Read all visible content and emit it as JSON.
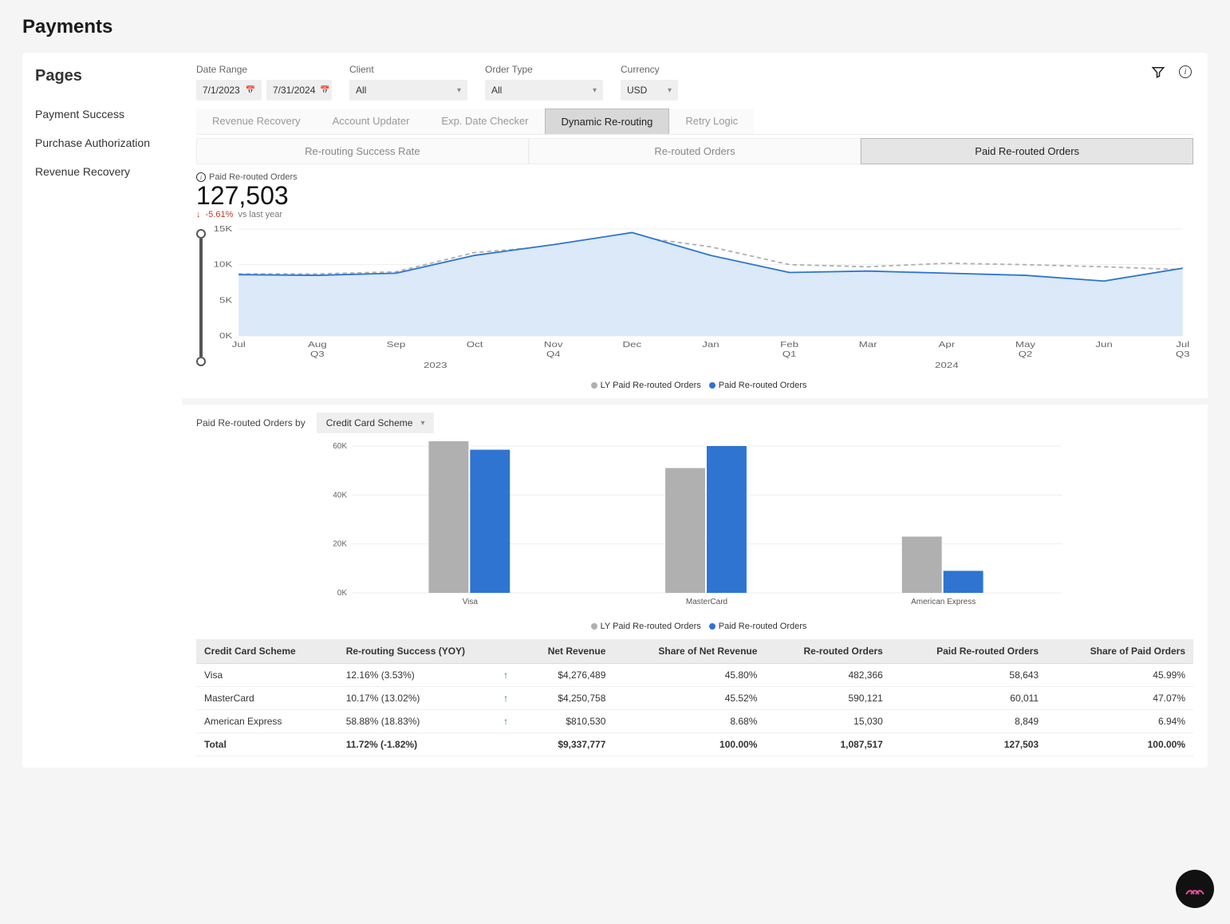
{
  "page_title": "Payments",
  "sidebar": {
    "title": "Pages",
    "items": [
      {
        "label": "Payment Success"
      },
      {
        "label": "Purchase Authorization"
      },
      {
        "label": "Revenue Recovery"
      }
    ]
  },
  "filters": {
    "date_range": {
      "label": "Date Range",
      "from": "7/1/2023",
      "to": "7/31/2024"
    },
    "client": {
      "label": "Client",
      "value": "All"
    },
    "order_type": {
      "label": "Order Type",
      "value": "All"
    },
    "currency": {
      "label": "Currency",
      "value": "USD"
    }
  },
  "tabs1": {
    "items": [
      "Revenue Recovery",
      "Account Updater",
      "Exp. Date Checker",
      "Dynamic Re-routing",
      "Retry Logic"
    ],
    "active_index": 3
  },
  "tabs2": {
    "items": [
      "Re-routing Success Rate",
      "Re-routed Orders",
      "Paid Re-routed Orders"
    ],
    "active_index": 2
  },
  "metric": {
    "label": "Paid Re-routed Orders",
    "value": "127,503",
    "change_pct": "-5.61%",
    "change_direction": "down",
    "vs_label": "vs last year"
  },
  "line_chart": {
    "type": "area-line",
    "y_axis": {
      "min": 0,
      "max": 15000,
      "ticks": [
        0,
        5000,
        10000,
        15000
      ],
      "tick_labels": [
        "0K",
        "5K",
        "10K",
        "15K"
      ]
    },
    "x_labels": [
      "Jul",
      "Aug",
      "Sep",
      "Oct",
      "Nov",
      "Dec",
      "Jan",
      "Feb",
      "Mar",
      "Apr",
      "May",
      "Jun",
      "Jul"
    ],
    "x_sub": [
      {
        "label": "Q3",
        "span": [
          0,
          2
        ]
      },
      {
        "label": "Q4",
        "span": [
          3,
          5
        ]
      },
      {
        "label": "Q1",
        "span": [
          6,
          8
        ]
      },
      {
        "label": "Q2",
        "span": [
          9,
          11
        ]
      },
      {
        "label": "Q3",
        "span": [
          12,
          12
        ]
      }
    ],
    "x_years": [
      {
        "label": "2023",
        "span": [
          0,
          5
        ]
      },
      {
        "label": "2024",
        "span": [
          6,
          12
        ]
      }
    ],
    "series": [
      {
        "name": "LY Paid Re-routed Orders",
        "color": "#b0b0b0",
        "dash": "4,3",
        "fill": "none",
        "values": [
          8700,
          8700,
          9000,
          11700,
          12600,
          14000,
          12500,
          10000,
          9700,
          10200,
          10000,
          9700,
          9300
        ]
      },
      {
        "name": "Paid Re-routed Orders",
        "color": "#2e74d0",
        "dash": "none",
        "fill": "#dbe9f8",
        "values": [
          8600,
          8500,
          8800,
          11300,
          12800,
          14500,
          11300,
          8900,
          9100,
          8800,
          8500,
          7700,
          9500
        ]
      }
    ],
    "legend_dot_colors": [
      "#b0b0b0",
      "#2e74d0"
    ],
    "grid_color": "#eeeeee",
    "axis_color": "#cccccc",
    "label_fontsize": 10,
    "background": "#ffffff"
  },
  "breakdown": {
    "label": "Paid Re-routed Orders by",
    "selector_value": "Credit Card Scheme"
  },
  "bar_chart": {
    "type": "grouped-bar",
    "y_axis": {
      "min": 0,
      "max": 60000,
      "ticks": [
        0,
        20000,
        40000,
        60000
      ],
      "tick_labels": [
        "0K",
        "20K",
        "40K",
        "60K"
      ]
    },
    "categories": [
      "Visa",
      "MasterCard",
      "American Express"
    ],
    "series": [
      {
        "name": "LY Paid Re-routed Orders",
        "color": "#b0b0b0",
        "values": [
          62000,
          51000,
          23000
        ]
      },
      {
        "name": "Paid Re-routed Orders",
        "color": "#2e74d0",
        "values": [
          58500,
          60000,
          9000
        ]
      }
    ],
    "legend_dot_colors": [
      "#b0b0b0",
      "#2e74d0"
    ],
    "bar_width": 0.35,
    "grid_color": "#eeeeee",
    "label_fontsize": 10
  },
  "table": {
    "columns": [
      {
        "label": "Credit Card Scheme",
        "align": "left"
      },
      {
        "label": "Re-routing Success (YOY)",
        "align": "left"
      },
      {
        "label": "Net Revenue",
        "align": "right"
      },
      {
        "label": "Share of Net Revenue",
        "align": "right"
      },
      {
        "label": "Re-routed Orders",
        "align": "right"
      },
      {
        "label": "Paid Re-routed Orders",
        "align": "right"
      },
      {
        "label": "Share of Paid Orders",
        "align": "right"
      }
    ],
    "rows": [
      {
        "scheme": "Visa",
        "yoy": "12.16% (3.53%)",
        "yoy_dir": "up",
        "net_rev": "$4,276,489",
        "share_rev": "45.80%",
        "rerouted": "482,366",
        "paid": "58,643",
        "share_paid": "45.99%"
      },
      {
        "scheme": "MasterCard",
        "yoy": "10.17% (13.02%)",
        "yoy_dir": "up",
        "net_rev": "$4,250,758",
        "share_rev": "45.52%",
        "rerouted": "590,121",
        "paid": "60,011",
        "share_paid": "47.07%"
      },
      {
        "scheme": "American Express",
        "yoy": "58.88% (18.83%)",
        "yoy_dir": "up",
        "net_rev": "$810,530",
        "share_rev": "8.68%",
        "rerouted": "15,030",
        "paid": "8,849",
        "share_paid": "6.94%"
      }
    ],
    "total": {
      "scheme": "Total",
      "yoy": "11.72% (-1.82%)",
      "yoy_dir": "",
      "net_rev": "$9,337,777",
      "share_rev": "100.00%",
      "rerouted": "1,087,517",
      "paid": "127,503",
      "share_paid": "100.00%"
    }
  }
}
